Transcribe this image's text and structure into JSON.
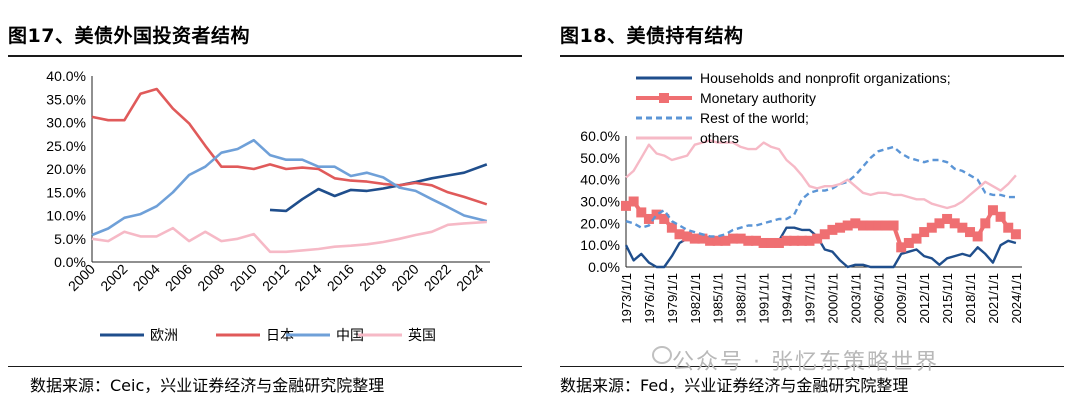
{
  "left": {
    "title": "图17、美债外国投资者结构",
    "source": "数据来源：Ceic，兴业证券经济与金融研究院整理"
  },
  "right": {
    "title": "图18、美债持有结构",
    "source": "数据来源：Fed，兴业证券经济与金融研究院整理"
  },
  "watermark": "公众号 · 张忆东策略世界",
  "watermark_icon": "wechat-icon",
  "chart_data": [
    {
      "type": "line",
      "ylim": [
        0,
        0.4
      ],
      "yticks": [
        0,
        0.05,
        0.1,
        0.15,
        0.2,
        0.25,
        0.3,
        0.35,
        0.4
      ],
      "ytick_labels": [
        "0.0%",
        "5.0%",
        "10.0%",
        "15.0%",
        "20.0%",
        "25.0%",
        "30.0%",
        "35.0%",
        "40.0%"
      ],
      "xlim": [
        2000,
        2024.6
      ],
      "xtick_labels": [
        "2000",
        "2002",
        "2004",
        "2006",
        "2008",
        "2010",
        "2012",
        "2014",
        "2016",
        "2018",
        "2020",
        "2022",
        "2024"
      ],
      "legend_position": "bottom",
      "series": [
        {
          "name": "欧洲",
          "color": "#1f4e8c",
          "x": [
            2011,
            2012,
            2013,
            2014,
            2015,
            2016,
            2017,
            2018,
            2019,
            2020,
            2021,
            2022,
            2023,
            2024.4
          ],
          "y": [
            0.112,
            0.11,
            0.135,
            0.157,
            0.142,
            0.155,
            0.153,
            0.158,
            0.165,
            0.172,
            0.18,
            0.186,
            0.192,
            0.21
          ]
        },
        {
          "name": "日本",
          "color": "#e05a5a",
          "x": [
            2000,
            2001,
            2002,
            2003,
            2004,
            2005,
            2006,
            2007,
            2008,
            2009,
            2010,
            2011,
            2012,
            2013,
            2014,
            2015,
            2016,
            2017,
            2018,
            2019,
            2020,
            2021,
            2022,
            2023,
            2024.4
          ],
          "y": [
            0.312,
            0.305,
            0.305,
            0.362,
            0.372,
            0.33,
            0.298,
            0.25,
            0.205,
            0.205,
            0.2,
            0.21,
            0.2,
            0.203,
            0.2,
            0.18,
            0.175,
            0.173,
            0.168,
            0.165,
            0.17,
            0.165,
            0.15,
            0.14,
            0.124
          ]
        },
        {
          "name": "中国",
          "color": "#6fa0d8",
          "x": [
            2000,
            2001,
            2002,
            2003,
            2004,
            2005,
            2006,
            2007,
            2008,
            2009,
            2010,
            2011,
            2012,
            2013,
            2014,
            2015,
            2016,
            2017,
            2018,
            2019,
            2020,
            2021,
            2022,
            2023,
            2024.4
          ],
          "y": [
            0.058,
            0.072,
            0.095,
            0.103,
            0.12,
            0.15,
            0.187,
            0.205,
            0.235,
            0.243,
            0.262,
            0.23,
            0.22,
            0.22,
            0.205,
            0.205,
            0.185,
            0.192,
            0.182,
            0.16,
            0.153,
            0.135,
            0.118,
            0.1,
            0.088
          ]
        },
        {
          "name": "英国",
          "color": "#f6b9c6",
          "x": [
            2000,
            2001,
            2002,
            2003,
            2004,
            2005,
            2006,
            2007,
            2008,
            2009,
            2010,
            2011,
            2012,
            2013,
            2014,
            2015,
            2016,
            2017,
            2018,
            2019,
            2020,
            2021,
            2022,
            2023,
            2024.4
          ],
          "y": [
            0.05,
            0.045,
            0.065,
            0.055,
            0.055,
            0.073,
            0.045,
            0.065,
            0.045,
            0.05,
            0.06,
            0.022,
            0.022,
            0.025,
            0.028,
            0.033,
            0.035,
            0.038,
            0.043,
            0.05,
            0.058,
            0.065,
            0.08,
            0.083,
            0.086
          ]
        }
      ]
    },
    {
      "type": "line",
      "ylim": [
        0,
        0.6
      ],
      "yticks": [
        0,
        0.1,
        0.2,
        0.3,
        0.4,
        0.5,
        0.6
      ],
      "ytick_labels": [
        "0.0%",
        "10.0%",
        "20.0%",
        "30.0%",
        "40.0%",
        "50.0%",
        "60.0%"
      ],
      "xlim": [
        1973,
        2024.8
      ],
      "xtick_labels": [
        "1973/1/1",
        "1976/1/1",
        "1979/1/1",
        "1982/1/1",
        "1985/1/1",
        "1988/1/1",
        "1991/1/1",
        "1994/1/1",
        "1997/1/1",
        "2000/1/1",
        "2003/1/1",
        "2006/1/1",
        "2009/1/1",
        "2012/1/1",
        "2015/1/1",
        "2018/1/1",
        "2021/1/1",
        "2024/1/1"
      ],
      "legend_position": "top-left",
      "series": [
        {
          "name": "Households and nonprofit organizations;",
          "color": "#1f4e8c",
          "style": "solid",
          "x": [
            1973,
            1974,
            1975,
            1976,
            1977,
            1978,
            1979,
            1980,
            1981,
            1982,
            1983,
            1984,
            1985,
            1986,
            1987,
            1988,
            1989,
            1990,
            1991,
            1992,
            1993,
            1994,
            1995,
            1996,
            1997,
            1998,
            1999,
            2000,
            2001,
            2002,
            2003,
            2004,
            2005,
            2006,
            2007,
            2008,
            2009,
            2010,
            2011,
            2012,
            2013,
            2014,
            2015,
            2016,
            2017,
            2018,
            2019,
            2020,
            2021,
            2022,
            2023,
            2024
          ],
          "y": [
            0.1,
            0.03,
            0.06,
            0.02,
            0.0,
            0.0,
            0.05,
            0.11,
            0.13,
            0.12,
            0.13,
            0.12,
            0.13,
            0.11,
            0.13,
            0.12,
            0.13,
            0.12,
            0.11,
            0.12,
            0.12,
            0.18,
            0.18,
            0.17,
            0.17,
            0.14,
            0.08,
            0.07,
            0.03,
            0.0,
            0.01,
            0.01,
            0.0,
            0.0,
            0.0,
            0.0,
            0.06,
            0.07,
            0.08,
            0.05,
            0.04,
            0.01,
            0.04,
            0.05,
            0.06,
            0.05,
            0.09,
            0.06,
            0.02,
            0.1,
            0.12,
            0.11
          ]
        },
        {
          "name": "Monetary authority",
          "color": "#ef6f72",
          "style": "solid-square",
          "x": [
            1973,
            1974,
            1975,
            1976,
            1977,
            1978,
            1979,
            1980,
            1981,
            1982,
            1983,
            1984,
            1985,
            1986,
            1987,
            1988,
            1989,
            1990,
            1991,
            1992,
            1993,
            1994,
            1995,
            1996,
            1997,
            1998,
            1999,
            2000,
            2001,
            2002,
            2003,
            2004,
            2005,
            2006,
            2007,
            2008,
            2009,
            2010,
            2011,
            2012,
            2013,
            2014,
            2015,
            2016,
            2017,
            2018,
            2019,
            2020,
            2021,
            2022,
            2023,
            2024
          ],
          "y": [
            0.28,
            0.3,
            0.25,
            0.22,
            0.24,
            0.22,
            0.18,
            0.15,
            0.14,
            0.13,
            0.13,
            0.12,
            0.12,
            0.12,
            0.13,
            0.13,
            0.12,
            0.12,
            0.11,
            0.11,
            0.11,
            0.12,
            0.12,
            0.12,
            0.12,
            0.13,
            0.15,
            0.17,
            0.18,
            0.19,
            0.2,
            0.19,
            0.19,
            0.19,
            0.19,
            0.19,
            0.09,
            0.11,
            0.13,
            0.16,
            0.18,
            0.2,
            0.22,
            0.2,
            0.18,
            0.16,
            0.14,
            0.2,
            0.26,
            0.23,
            0.18,
            0.15
          ]
        },
        {
          "name": "Rest of the world;",
          "color": "#5b95d6",
          "style": "dashed",
          "x": [
            1973,
            1974,
            1975,
            1976,
            1977,
            1978,
            1979,
            1980,
            1981,
            1982,
            1983,
            1984,
            1985,
            1986,
            1987,
            1988,
            1989,
            1990,
            1991,
            1992,
            1993,
            1994,
            1995,
            1996,
            1997,
            1998,
            1999,
            2000,
            2001,
            2002,
            2003,
            2004,
            2005,
            2006,
            2007,
            2008,
            2009,
            2010,
            2011,
            2012,
            2013,
            2014,
            2015,
            2016,
            2017,
            2018,
            2019,
            2020,
            2021,
            2022,
            2023,
            2024
          ],
          "y": [
            0.21,
            0.2,
            0.18,
            0.19,
            0.24,
            0.26,
            0.21,
            0.19,
            0.17,
            0.16,
            0.15,
            0.14,
            0.14,
            0.15,
            0.17,
            0.18,
            0.19,
            0.19,
            0.2,
            0.21,
            0.22,
            0.22,
            0.24,
            0.31,
            0.34,
            0.35,
            0.35,
            0.36,
            0.38,
            0.39,
            0.42,
            0.46,
            0.5,
            0.53,
            0.54,
            0.55,
            0.52,
            0.5,
            0.49,
            0.48,
            0.49,
            0.49,
            0.48,
            0.45,
            0.44,
            0.42,
            0.4,
            0.34,
            0.33,
            0.33,
            0.32,
            0.32
          ]
        },
        {
          "name": "others",
          "color": "#f6b9c6",
          "style": "solid",
          "x": [
            1973,
            1974,
            1975,
            1976,
            1977,
            1978,
            1979,
            1980,
            1981,
            1982,
            1983,
            1984,
            1985,
            1986,
            1987,
            1988,
            1989,
            1990,
            1991,
            1992,
            1993,
            1994,
            1995,
            1996,
            1997,
            1998,
            1999,
            2000,
            2001,
            2002,
            2003,
            2004,
            2005,
            2006,
            2007,
            2008,
            2009,
            2010,
            2011,
            2012,
            2013,
            2014,
            2015,
            2016,
            2017,
            2018,
            2019,
            2020,
            2021,
            2022,
            2023,
            2024
          ],
          "y": [
            0.41,
            0.44,
            0.5,
            0.56,
            0.52,
            0.51,
            0.49,
            0.5,
            0.51,
            0.56,
            0.57,
            0.58,
            0.57,
            0.57,
            0.57,
            0.55,
            0.54,
            0.54,
            0.57,
            0.55,
            0.54,
            0.49,
            0.46,
            0.42,
            0.37,
            0.36,
            0.37,
            0.37,
            0.38,
            0.4,
            0.37,
            0.34,
            0.33,
            0.34,
            0.34,
            0.33,
            0.33,
            0.32,
            0.31,
            0.31,
            0.29,
            0.28,
            0.27,
            0.28,
            0.3,
            0.33,
            0.36,
            0.39,
            0.37,
            0.35,
            0.38,
            0.42
          ]
        }
      ]
    }
  ]
}
